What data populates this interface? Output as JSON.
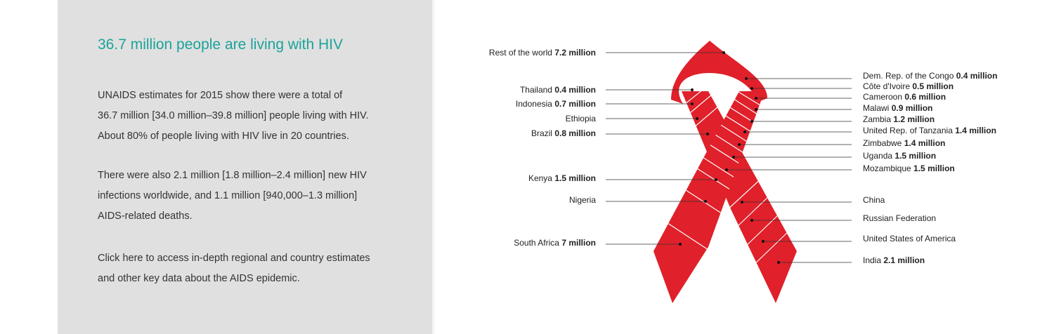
{
  "panel": {
    "title": "36.7 million people are living with HIV",
    "paragraphs": [
      [
        "UNAIDS estimates for 2015 show there were a total of",
        "36.7 million [34.0 million–39.8 million] people living with HIV.",
        "About 80% of people living with HIV live in 20 countries."
      ],
      [
        "There were also 2.1 million [1.8 million–2.4 million] new HIV",
        "infections worldwide, and 1.1 million [940,000–1.3 million]",
        "AIDS-related deaths."
      ],
      [
        "Click here to access in-depth regional and country estimates",
        "and other key data about the AIDS epidemic."
      ]
    ]
  },
  "colors": {
    "accent": "#1aa39a",
    "ribbon": "#e0202a",
    "panel_bg": "#e0e0e0"
  },
  "ribbon_labels": {
    "left": [
      {
        "name": "Rest of the world",
        "value": "7.2 million"
      },
      {
        "name": "Thailand",
        "value": "0.4 million"
      },
      {
        "name": "Indonesia",
        "value": "0.7 million"
      },
      {
        "name": "Ethiopia",
        "value": ""
      },
      {
        "name": "Brazil",
        "value": "0.8 million"
      },
      {
        "name": "Kenya",
        "value": "1.5 million"
      },
      {
        "name": "Nigeria",
        "value": ""
      },
      {
        "name": "South Africa",
        "value": "7 million"
      }
    ],
    "right": [
      {
        "name": "Dem. Rep. of the Congo",
        "value": "0.4 million"
      },
      {
        "name": "Côte d'Ivoire",
        "value": "0.5 million"
      },
      {
        "name": "Cameroon",
        "value": "0.6 million"
      },
      {
        "name": "Malawi",
        "value": "0.9 million"
      },
      {
        "name": "Zambia",
        "value": "1.2 million"
      },
      {
        "name": "United Rep. of Tanzania",
        "value": "1.4 million"
      },
      {
        "name": "Zimbabwe",
        "value": "1.4 million"
      },
      {
        "name": "Uganda",
        "value": "1.5 million"
      },
      {
        "name": "Mozambique",
        "value": "1.5 million"
      },
      {
        "name": "China",
        "value": ""
      },
      {
        "name": "Russian Federation",
        "value": ""
      },
      {
        "name": "United States of America",
        "value": ""
      },
      {
        "name": "India",
        "value": "2.1 million"
      }
    ]
  }
}
